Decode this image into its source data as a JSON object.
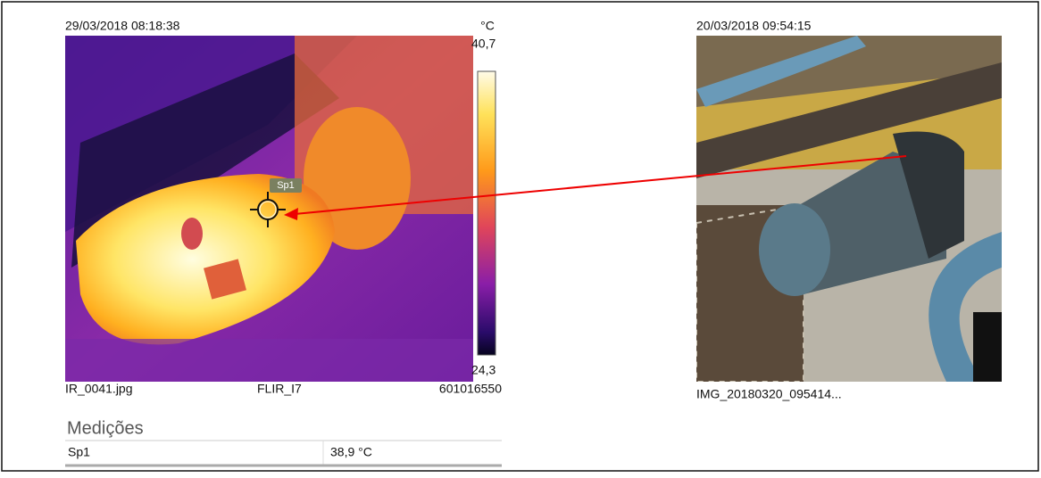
{
  "ir_image": {
    "timestamp": "29/03/2018 08:18:38",
    "spot_label": "Sp1",
    "scale_unit": "°C",
    "scale_max": "40,7",
    "scale_min": "24,3",
    "file_name": "IR_0041.jpg",
    "camera": "FLIR_I7",
    "serial": "601016550"
  },
  "photo": {
    "timestamp": "20/03/2018 09:54:15",
    "file_name": "IMG_20180320_095414..."
  },
  "measurements": {
    "title": "Medições",
    "rows": [
      [
        "Sp1",
        "38,9 °C"
      ]
    ]
  }
}
